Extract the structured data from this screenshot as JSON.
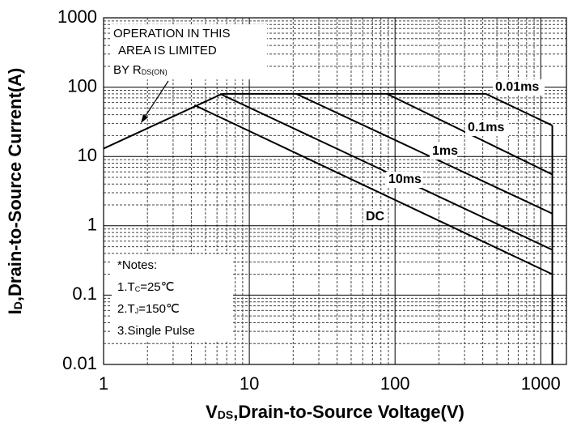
{
  "chart_data": {
    "type": "line",
    "log_x": true,
    "log_y": true,
    "grid": true,
    "xlim": [
      1,
      1500
    ],
    "ylim": [
      0.01,
      1000
    ],
    "xticks": [
      1,
      10,
      100,
      1000
    ],
    "yticks": [
      0.01,
      0.1,
      1,
      10,
      100,
      1000
    ],
    "xminorticks": [
      2,
      3,
      4,
      5,
      6,
      7,
      8,
      9,
      20,
      30,
      40,
      50,
      60,
      70,
      80,
      90,
      200,
      300,
      400,
      500,
      600,
      700,
      800,
      900
    ],
    "yminorticks": [
      0.02,
      0.03,
      0.04,
      0.05,
      0.06,
      0.07,
      0.08,
      0.09,
      0.2,
      0.3,
      0.4,
      0.5,
      0.6,
      0.7,
      0.8,
      0.9,
      2,
      3,
      4,
      5,
      6,
      7,
      8,
      9,
      20,
      30,
      40,
      50,
      60,
      70,
      80,
      90,
      200,
      300,
      400,
      500,
      600,
      700,
      800,
      900
    ],
    "xlabel": {
      "main": "V",
      "sub": "DS",
      "rest": ",Drain-to-Source Voltage(V)"
    },
    "ylabel": {
      "main": "I",
      "sub": "D",
      "rest": ",Drain-to-Source Current(A)"
    },
    "annotation": {
      "line1": "OPERATION IN THIS",
      "line2": "AREA IS LIMITED",
      "line3": {
        "main": "BY R",
        "sub": "DS(ON)"
      }
    },
    "notes": {
      "title": "*Notes:",
      "n1": {
        "main": "1.T",
        "sub": "C",
        "rest": "=25℃"
      },
      "n2": {
        "main": "2.T",
        "sub": "J",
        "rest": "=150℃"
      },
      "n3": "3.Single Pulse"
    },
    "series": [
      {
        "name": "0.01ms",
        "color": "#000000",
        "x": [
          6.5,
          420,
          1200
        ],
        "values": [
          80,
          80,
          28
        ]
      },
      {
        "name": "0.1ms",
        "color": "#000000",
        "x": [
          88,
          1200
        ],
        "values": [
          80,
          5.5
        ]
      },
      {
        "name": "1ms",
        "color": "#000000",
        "x": [
          21,
          1200
        ],
        "values": [
          80,
          1.5
        ]
      },
      {
        "name": "10ms",
        "color": "#000000",
        "x": [
          6.3,
          1200
        ],
        "values": [
          80,
          0.45
        ]
      },
      {
        "name": "DC",
        "color": "#000000",
        "x": [
          4.2,
          1200
        ],
        "values": [
          55,
          0.2
        ]
      },
      {
        "color": "#000000",
        "x": [
          1,
          6.5
        ],
        "values": [
          13,
          80
        ]
      },
      {
        "color": "#000000",
        "x": [
          1200,
          1200
        ],
        "values": [
          28,
          0.01
        ]
      }
    ]
  }
}
